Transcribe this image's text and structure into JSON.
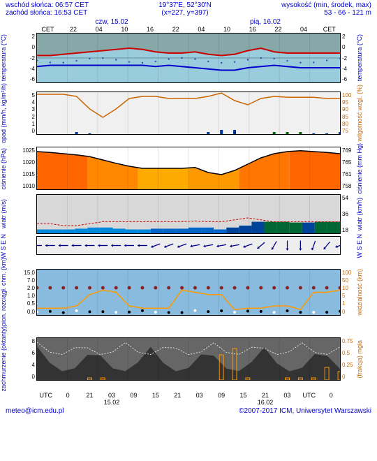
{
  "header": {
    "sunrise": "wschód słońca: 06:57 CET",
    "sunset": "zachód słońca: 16:53 CET",
    "coords": "19°37'E, 52°30'N",
    "grid": "(x=227, y=397)",
    "elev_label": "wysokość (min, środek, max)",
    "elev_val": "53 - 66 - 121 m"
  },
  "dates": {
    "d1": "czw, 15.02",
    "d2": "pią, 16.02"
  },
  "xticks_top": [
    "CET",
    "22",
    "04",
    "10",
    "16",
    "22",
    "04",
    "10",
    "16",
    "22",
    "04",
    "CET"
  ],
  "xticks_bot": [
    "UTC",
    "0",
    "21",
    "03",
    "09",
    "15",
    "21",
    "03",
    "09",
    "15",
    "21",
    "03",
    "UTC",
    "0"
  ],
  "date_under": {
    "d1": "15.02",
    "d2": "16.02"
  },
  "panels": {
    "temp": {
      "label_l": "temperatura\n(°C)",
      "label_r": "temperatura\n(°C)",
      "yticks": [
        "2",
        "0",
        "-2",
        "-4",
        "-6"
      ],
      "yticks_r": [
        "2",
        "0",
        "-2",
        "-4",
        "-6"
      ],
      "height": 70,
      "bg_fill": "#87a8a8",
      "area_color": "#99ccdd",
      "grid_color": "#e0e0e0",
      "red_line": [
        0.1,
        0.1,
        0.15,
        0.2,
        0.25,
        0.3,
        0.35,
        0.4,
        0.35,
        0.25,
        0.2,
        0.2,
        0.25,
        0.15,
        0.1,
        0.15,
        0.3,
        0.4,
        0.25,
        0.2,
        0.2,
        0.2,
        0.2,
        0.2
      ],
      "red_color": "#cc0000",
      "blue_line": [
        -0.35,
        -0.3,
        -0.3,
        -0.3,
        -0.3,
        -0.3,
        -0.3,
        -0.3,
        -0.3,
        -0.35,
        -0.3,
        -0.35,
        -0.4,
        -0.45,
        -0.5,
        -0.5,
        -0.4,
        -0.35,
        -0.3,
        -0.35,
        -0.4,
        -0.4,
        -0.4,
        -0.4
      ],
      "blue_color": "#0000cc",
      "dotted_color": "#4444aa"
    },
    "precip": {
      "label_l": "opad\n(mm/h, kg/m²/h)",
      "label_r": "wilgotność wzgl.\n(%)",
      "yticks": [
        "5",
        "4",
        "3",
        "2",
        "1",
        "0"
      ],
      "yticks_r": [
        "100",
        "95",
        "90",
        "85",
        "80",
        "75"
      ],
      "height": 60,
      "humidity_line": [
        0.95,
        0.95,
        0.95,
        0.9,
        0.6,
        0.4,
        0.6,
        0.85,
        0.9,
        0.9,
        0.85,
        0.85,
        0.85,
        0.9,
        0.98,
        0.8,
        0.7,
        0.85,
        0.9,
        0.88,
        0.88,
        0.88,
        0.85,
        0.85
      ],
      "humidity_color": "#cc6600",
      "precip_bars": [
        0,
        0,
        0,
        0.05,
        0.02,
        0,
        0,
        0,
        0,
        0,
        0,
        0,
        0,
        0.05,
        0.1,
        0.1,
        0,
        0,
        0.05,
        0.05,
        0.05,
        0.02,
        0.02,
        0.05
      ],
      "bar_color": "#003399",
      "conv_color": "#006600",
      "bg": "#f0f0f0"
    },
    "pressure": {
      "label_l": "ciśnienie\n(hPa)",
      "label_r": "ciśnienie\n(mm Hg)",
      "yticks": [
        "1025",
        "1020",
        "1015",
        "1010"
      ],
      "yticks_r": [
        "769",
        "765",
        "761",
        "758"
      ],
      "height": 60,
      "fill_colors": [
        "#ff6600",
        "#ff8800",
        "#ffaa00",
        "#ff9900",
        "#ff7700",
        "#ff6600"
      ],
      "line": [
        0.9,
        0.88,
        0.85,
        0.82,
        0.78,
        0.7,
        0.62,
        0.55,
        0.5,
        0.5,
        0.5,
        0.5,
        0.52,
        0.4,
        0.35,
        0.45,
        0.6,
        0.75,
        0.85,
        0.9,
        0.92,
        0.9,
        0.88,
        0.85
      ],
      "line_color": "#000000"
    },
    "wind": {
      "label_l": "wiatr\n(m/s)",
      "label_r": "wiatr\n(km/h)",
      "yticks": [
        "",
        "",
        ""
      ],
      "yticks_r": [
        "54",
        "36",
        "18"
      ],
      "height": 55,
      "bg": "#d8d8d8",
      "gust_line": [
        0.25,
        0.25,
        0.2,
        0.2,
        0.25,
        0.3,
        0.3,
        0.3,
        0.3,
        0.3,
        0.3,
        0.3,
        0.32,
        0.3,
        0.3,
        0.35,
        0.4,
        0.35,
        0.3,
        0.3,
        0.3,
        0.3,
        0.3,
        0.3
      ],
      "gust_color": "#cc0000",
      "speed_area": [
        0.1,
        0.1,
        0.1,
        0.12,
        0.15,
        0.15,
        0.12,
        0.1,
        0.1,
        0.12,
        0.12,
        0.12,
        0.15,
        0.15,
        0.1,
        0.15,
        0.2,
        0.3,
        0.3,
        0.3,
        0.28,
        0.28,
        0.3,
        0.3
      ],
      "speed_colors": [
        "#0088dd",
        "#0088dd",
        "#0088dd",
        "#0088dd",
        "#0088dd",
        "#0088dd",
        "#0088dd",
        "#0088dd",
        "#0088dd",
        "#0066cc",
        "#0066cc",
        "#0066cc",
        "#0066cc",
        "#0066cc",
        "#0066cc",
        "#004499",
        "#004499",
        "#004499",
        "#006633",
        "#006633",
        "#006633",
        "#004499",
        "#006633",
        "#006633"
      ]
    },
    "winddir": {
      "label_l": "W\nS\nE\nN",
      "label_r": "W\nS\nE\nN",
      "height": 25,
      "bg": "#eeeeee",
      "arrow_color": "#000088",
      "directions": [
        270,
        270,
        270,
        270,
        270,
        270,
        270,
        270,
        270,
        250,
        250,
        250,
        260,
        260,
        260,
        260,
        250,
        230,
        210,
        180,
        180,
        200,
        220,
        250
      ]
    },
    "clouds": {
      "label_l": "pion. rozciągł. chm.\n(km)",
      "label_r": "widzialność\n(km)",
      "yticks": [
        "15.0",
        "7.0",
        "2.0",
        "1.0",
        "0.5",
        "0.0"
      ],
      "yticks_r": [
        "100",
        "50",
        "10",
        "5",
        "1",
        "0"
      ],
      "height": 65,
      "bg": "#88bbdd",
      "vis_line": [
        0.15,
        0.15,
        0.15,
        0.2,
        0.45,
        0.55,
        0.5,
        0.2,
        0.15,
        0.15,
        0.15,
        0.55,
        0.5,
        0.45,
        0.45,
        0.12,
        0.15,
        0.15,
        0.2,
        0.2,
        0.12,
        0.5,
        0.5,
        0.55
      ],
      "vis_color": "#ff9900",
      "cloud_top": [
        0.6,
        0.6,
        0.6,
        0.6,
        0.6,
        0.6,
        0.6,
        0.6,
        0.6,
        0.6,
        0.6,
        0.6,
        0.6,
        0.6,
        0.6,
        0.6,
        0.6,
        0.6,
        0.6,
        0.6,
        0.6,
        0.6,
        0.6,
        0.6
      ],
      "dot_color": "#882222",
      "black_dot": "#000000",
      "white_dot": "#ffffff"
    },
    "cover": {
      "label_l": "zachmurzenie\n(oktanty)",
      "label_r": "(frakcja)\nmgła",
      "yticks": [
        "8",
        "6",
        "4",
        "0"
      ],
      "yticks_r": [
        "0.75",
        "0.5",
        "0.25",
        "0"
      ],
      "height": 60,
      "bg": "#666666",
      "mountain_color": "#333333",
      "fog_bars": [
        0,
        0,
        0,
        0,
        0.05,
        0.05,
        0,
        0,
        0,
        0,
        0,
        0,
        0,
        0,
        0.6,
        0.75,
        0.05,
        0,
        0,
        0.05,
        0.05,
        0.05,
        0.3,
        0.2
      ],
      "fog_color": "#ff9900",
      "white_line": "#e0e0e0"
    }
  },
  "footer": {
    "email": "meteo@icm.edu.pl",
    "copyright": "©2007-2017 ICM, Uniwersytet Warszawski"
  }
}
